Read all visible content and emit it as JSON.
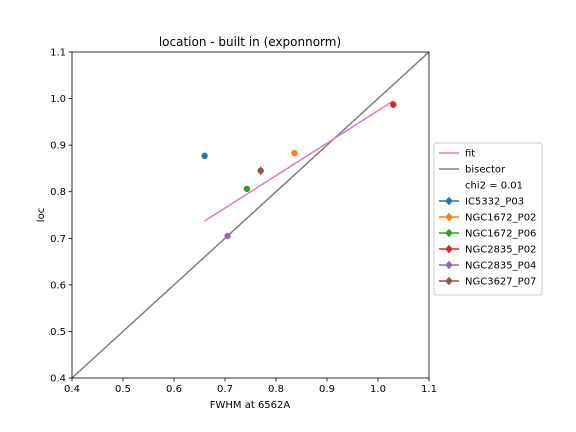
{
  "chart_data": {
    "type": "scatter",
    "title": "location - built in (exponnorm)",
    "xlabel": "FWHM at 6562A",
    "ylabel": "loc",
    "xlim": [
      0.4,
      1.1
    ],
    "ylim": [
      0.4,
      1.1
    ],
    "xticks": [
      "0.4",
      "0.5",
      "0.6",
      "0.7",
      "0.8",
      "0.9",
      "1.0",
      "1.1"
    ],
    "yticks": [
      "0.4",
      "0.5",
      "0.6",
      "0.7",
      "0.8",
      "0.9",
      "1.0",
      "1.1"
    ],
    "grid": false,
    "legend_placement": "center-right outside",
    "fit": {
      "name": "fit",
      "color": "#e377c2",
      "x": [
        0.66,
        1.03
      ],
      "y": [
        0.737,
        0.995
      ]
    },
    "bisector": {
      "name": "bisector",
      "color": "#7f7f7f",
      "x": [
        0.4,
        1.1
      ],
      "y": [
        0.4,
        1.1
      ]
    },
    "chi2_label": "chi2 = 0.01",
    "series": [
      {
        "name": "IC5332_P03",
        "color": "#1f77b4",
        "x": 0.66,
        "y": 0.877,
        "yerr": 0.006
      },
      {
        "name": "NGC1672_P02",
        "color": "#ff7f0e",
        "x": 0.836,
        "y": 0.883,
        "yerr": 0.004
      },
      {
        "name": "NGC1672_P06",
        "color": "#2ca02c",
        "x": 0.743,
        "y": 0.806,
        "yerr": 0.004
      },
      {
        "name": "NGC2835_P02",
        "color": "#d62728",
        "x": 1.03,
        "y": 0.987,
        "yerr": 0.007
      },
      {
        "name": "NGC2835_P04",
        "color": "#9467bd",
        "x": 0.705,
        "y": 0.705,
        "yerr": 0.004
      },
      {
        "name": "NGC3627_P07",
        "color": "#8c564b",
        "x": 0.77,
        "y": 0.845,
        "yerr": 0.009
      }
    ]
  }
}
